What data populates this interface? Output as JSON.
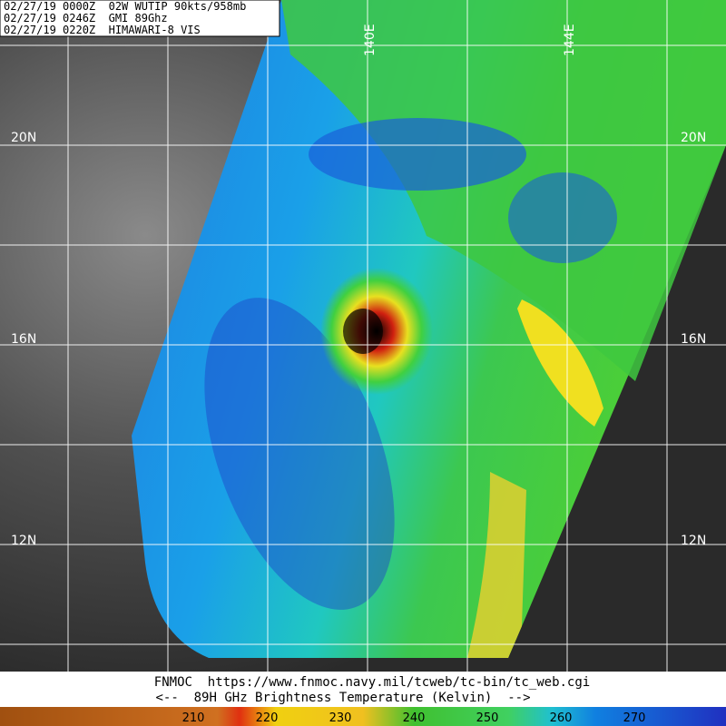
{
  "header": {
    "lines": [
      "02/27/19 0000Z  02W WUTIP 90kts/958mb",
      "02/27/19 0246Z  GMI 89Ghz",
      "02/27/19 0220Z  HIMAWARI-8 VIS"
    ]
  },
  "map": {
    "lon_labels": [
      "140E",
      "144E"
    ],
    "lat_labels_left": [
      "20N",
      "16N",
      "12N"
    ],
    "lat_labels_right": [
      "20N",
      "16N",
      "12N"
    ]
  },
  "footer": {
    "source": "FNMOC  https://www.fnmoc.navy.mil/tcweb/tc-bin/tc_web.cgi",
    "caption": "<--  89H GHz Brightness Temperature (Kelvin)  -->"
  },
  "colorbar": {
    "ticks": [
      210,
      220,
      230,
      240,
      250,
      260,
      270
    ]
  }
}
